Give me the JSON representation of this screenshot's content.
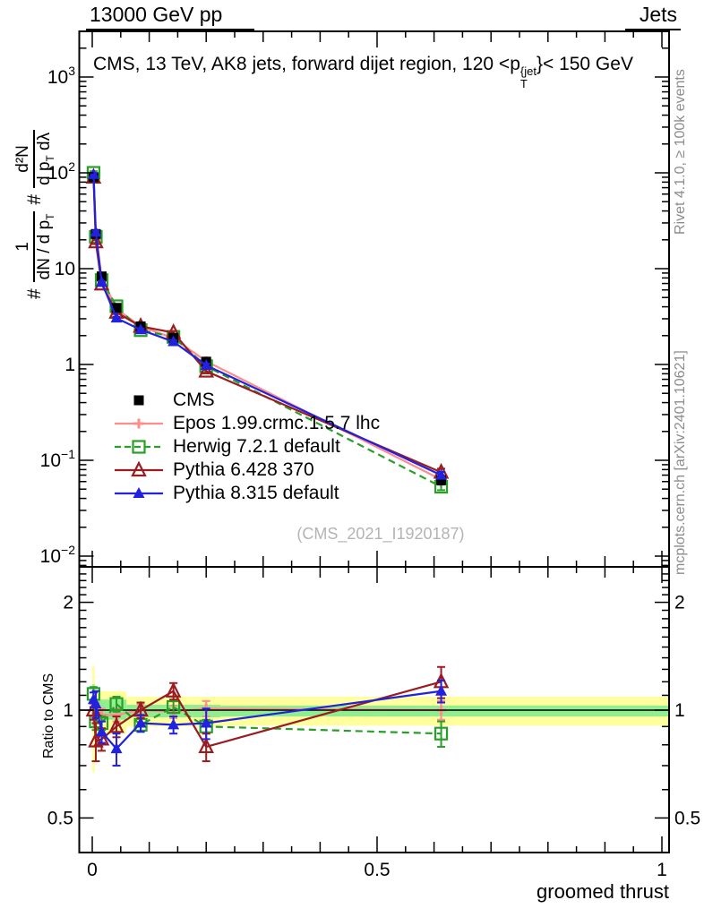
{
  "header": {
    "beam_label": "13000 GeV pp",
    "right_label": "Jets"
  },
  "title": {
    "prefix": "CMS, 13 TeV, AK8 jets, forward dijet region, 120 <p",
    "stack_sup": "{jet",
    "stack_sub": "T",
    "suffix": "}< 150 GeV"
  },
  "y_axis_label": {
    "hash_a": "#",
    "num_a": "1",
    "den_a_main": "dN / d p",
    "den_a_sub": "T",
    "hash_b": "#",
    "num_b": "d²N",
    "den_b_main": "d p",
    "den_b_sub": "T",
    "den_b_tail": " dλ"
  },
  "ratio_axis_label": "Ratio to CMS",
  "x_axis_label": "groomed thrust",
  "watermark": "(CMS_2021_I1920187)",
  "side_notes": {
    "top": "Rivet 4.1.0, ≥ 100k events",
    "bottom": "mcplots.cern.ch [arXiv:2401.10621]"
  },
  "chart_data": {
    "type": "line",
    "title": "CMS, 13 TeV, AK8 jets, forward dijet region, 120 < pT{jet} < 150 GeV",
    "xlabel": "groomed thrust",
    "ylabel": "# 1/(dN/dpT) # d²N/(dpT dλ)",
    "ratio_ylabel": "Ratio to CMS",
    "x_range": [
      -0.024,
      1.013
    ],
    "main_y_range": [
      0.0077,
      3000
    ],
    "ratio_y_range": [
      0.4,
      2.51
    ],
    "main_y_scale": "log",
    "ratio_y_scale": "log",
    "x_ticks_labeled": [
      0,
      0.5,
      1
    ],
    "x_tick_labels": [
      "0",
      "0.5",
      "1"
    ],
    "main_y_ticks_labeled": [
      1000,
      100,
      10,
      1,
      0.1,
      0.01
    ],
    "ratio_y_ticks_labeled": [
      2,
      1,
      0.5
    ],
    "ratio_y_tick_labels": [
      "2",
      "1",
      "0.5"
    ],
    "x": [
      0.00225,
      0.00625,
      0.0165,
      0.0425,
      0.085,
      0.1425,
      0.2,
      0.6125
    ],
    "bin_edges": [
      0,
      0.0045,
      0.008,
      0.025,
      0.06,
      0.11,
      0.175,
      0.225,
      1.0
    ],
    "series": [
      {
        "name": "CMS",
        "color": "#000000",
        "marker": "square-filled",
        "line": "none",
        "show_in_ratio": false,
        "values": [
          90,
          23,
          8.3,
          3.9,
          2.5,
          1.9,
          1.07,
          0.062
        ],
        "value_err_frac": [
          0.05,
          0.05,
          0.04,
          0.04,
          0.04,
          0.04,
          0.05,
          0.1
        ],
        "ratio": [
          1,
          1,
          1,
          1,
          1,
          1,
          1,
          1
        ],
        "ratio_err": [
          0,
          0,
          0,
          0,
          0,
          0,
          0,
          0
        ]
      },
      {
        "name": "Epos 1.99.crmc.1.5.7 lhc",
        "color": "#ff8c8c",
        "marker": "plus-open",
        "line": "solid",
        "show_in_ratio": true,
        "values": [
          90,
          23,
          8.1,
          3.8,
          2.5,
          1.88,
          1.08,
          0.063
        ],
        "value_err_frac": [
          0.03,
          0.03,
          0.03,
          0.03,
          0.03,
          0.03,
          0.03,
          0.05
        ],
        "ratio": [
          1.0,
          1.0,
          0.97,
          0.97,
          1.0,
          0.99,
          1.01,
          1.0
        ],
        "ratio_err": [
          0.04,
          0.05,
          0.04,
          0.04,
          0.04,
          0.04,
          0.05,
          0.06
        ]
      },
      {
        "name": "Herwig 7.2.1 default",
        "color": "#28a028",
        "marker": "square-open",
        "line": "dashed",
        "show_in_ratio": true,
        "values": [
          100,
          21.5,
          7.6,
          4.05,
          2.28,
          1.94,
          0.96,
          0.053
        ],
        "value_err_frac": [
          0.04,
          0.04,
          0.03,
          0.03,
          0.03,
          0.03,
          0.04,
          0.08
        ],
        "ratio": [
          1.11,
          0.93,
          0.92,
          1.04,
          0.91,
          1.02,
          0.9,
          0.86
        ],
        "ratio_err": [
          0.05,
          0.05,
          0.04,
          0.05,
          0.04,
          0.04,
          0.04,
          0.07
        ]
      },
      {
        "name": "Pythia 6.428 370",
        "color": "#9a1c20",
        "marker": "triangle-open",
        "line": "solid",
        "show_in_ratio": true,
        "values": [
          90,
          19,
          6.9,
          3.5,
          2.5,
          2.15,
          0.85,
          0.075
        ],
        "value_err_frac": [
          0.04,
          0.05,
          0.04,
          0.04,
          0.04,
          0.04,
          0.05,
          0.09
        ],
        "ratio": [
          1.0,
          0.82,
          0.83,
          0.9,
          1.0,
          1.13,
          0.79,
          1.2
        ],
        "ratio_err": [
          0.06,
          0.1,
          0.06,
          0.06,
          0.05,
          0.06,
          0.07,
          0.12
        ]
      },
      {
        "name": "Pythia 8.315 default",
        "color": "#2121de",
        "marker": "triangle-filled",
        "line": "solid",
        "show_in_ratio": true,
        "values": [
          96,
          24,
          7.2,
          3.05,
          2.3,
          1.73,
          0.98,
          0.07
        ],
        "value_err_frac": [
          0.04,
          0.04,
          0.03,
          0.03,
          0.03,
          0.03,
          0.04,
          0.08
        ],
        "ratio": [
          1.07,
          1.04,
          0.87,
          0.78,
          0.92,
          0.91,
          0.92,
          1.13
        ],
        "ratio_err": [
          0.05,
          0.09,
          0.06,
          0.08,
          0.05,
          0.05,
          0.09,
          0.08
        ]
      }
    ],
    "uncertainty_bands": {
      "yellow_color": "#ffff9e",
      "green_color": "#90ee90",
      "yellow_lo": [
        0.67,
        0.81,
        0.86,
        0.86,
        0.9,
        0.9,
        0.9,
        0.905
      ],
      "yellow_hi": [
        1.33,
        1.15,
        1.13,
        1.13,
        1.09,
        1.09,
        1.09,
        1.09
      ],
      "green_lo": [
        0.9,
        0.93,
        0.94,
        0.94,
        0.955,
        0.955,
        0.955,
        0.96
      ],
      "green_hi": [
        1.18,
        1.08,
        1.07,
        1.07,
        1.035,
        1.035,
        1.035,
        1.03
      ]
    },
    "grid": false,
    "legend_position": "middle-left"
  }
}
